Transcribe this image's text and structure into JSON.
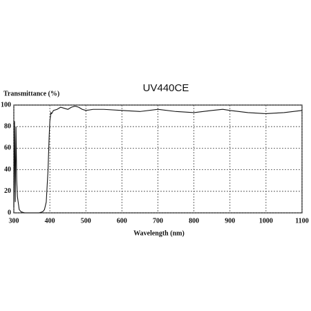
{
  "chart_data": {
    "type": "line",
    "title": "UV440CE",
    "y_label": "Transmittance (%)",
    "x_label": "Wavelength (nm)",
    "x": [
      300,
      302,
      304,
      306,
      308,
      310,
      315,
      320,
      330,
      350,
      370,
      380,
      385,
      390,
      395,
      398,
      400,
      403,
      405,
      410,
      420,
      430,
      440,
      450,
      460,
      470,
      480,
      490,
      500,
      520,
      550,
      600,
      650,
      700,
      750,
      800,
      850,
      880,
      900,
      950,
      1000,
      1050,
      1100
    ],
    "series": [
      {
        "name": "UV440CE",
        "color": "#111111",
        "values": [
          5,
          85,
          10,
          80,
          30,
          15,
          3,
          1,
          0,
          0,
          0,
          1,
          3,
          10,
          40,
          70,
          85,
          93,
          92,
          95,
          96,
          98,
          97,
          96,
          98,
          99,
          98,
          96,
          95,
          96,
          96,
          95,
          94,
          96,
          94,
          93,
          95,
          96,
          95,
          93,
          92,
          93,
          95
        ]
      }
    ],
    "xlim": [
      300,
      1100
    ],
    "ylim": [
      0,
      100
    ],
    "xticks": [
      300,
      400,
      500,
      600,
      700,
      800,
      900,
      1000,
      1100
    ],
    "yticks": [
      0,
      20,
      40,
      60,
      80,
      100
    ],
    "grid": true
  }
}
